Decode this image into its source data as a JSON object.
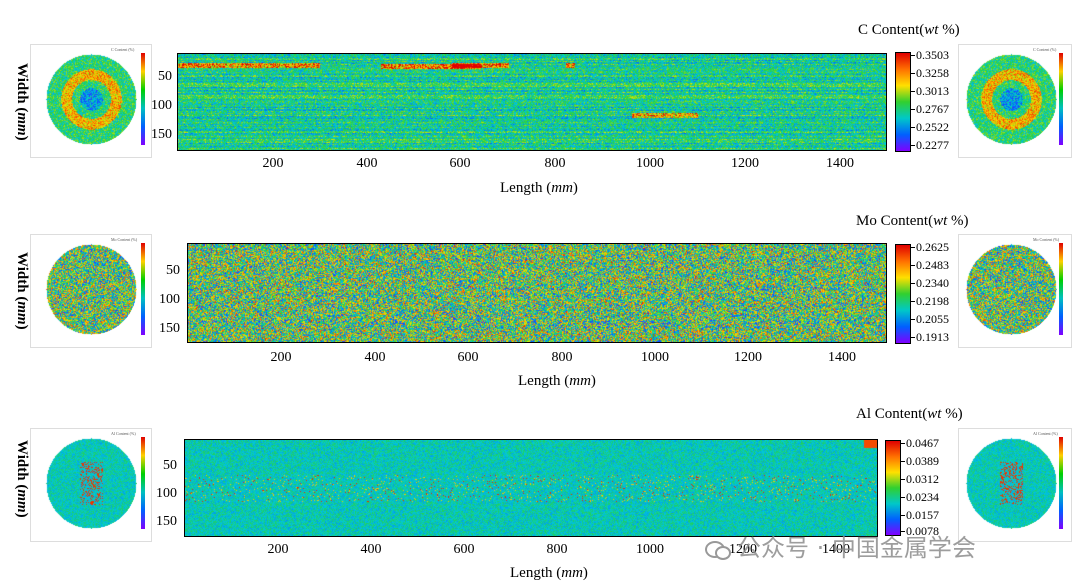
{
  "chart_data": [
    {
      "type": "heatmap",
      "title": "C Content(wt %)",
      "title_main": "C Content(",
      "title_unit": "wt",
      "title_tail": " %)",
      "xlabel_main": "Length (",
      "xlabel_unit": "mm",
      "xlabel_tail": ")",
      "ylabel_main": "Width (",
      "ylabel_unit": "mm",
      "ylabel_tail": ")",
      "xticks": [
        200,
        400,
        600,
        800,
        1000,
        1200,
        1400
      ],
      "yticks": [
        50,
        100,
        150
      ],
      "xlim": [
        0,
        1500
      ],
      "ylim": [
        0,
        180
      ],
      "colorbar_ticks": [
        "0.3503",
        "0.3258",
        "0.3013",
        "0.2767",
        "0.2522",
        "0.2277"
      ],
      "range": [
        0.2277,
        0.3503
      ],
      "pattern": "streaks",
      "red_zones": [
        [
          0,
          300,
          20,
          0.9
        ],
        [
          430,
          640,
          22,
          1.0
        ],
        [
          580,
          700,
          20,
          1.0
        ],
        [
          820,
          840,
          20,
          1.0
        ],
        [
          960,
          1100,
          115,
          0.8
        ]
      ],
      "thumb_title": "C Content (%)"
    },
    {
      "type": "heatmap",
      "title": "Mo Content(wt %)",
      "title_main": "Mo Content(",
      "title_unit": "wt",
      "title_tail": " %)",
      "xlabel_main": "Length (",
      "xlabel_unit": "mm",
      "xlabel_tail": ")",
      "ylabel_main": "Width (",
      "ylabel_unit": "mm",
      "ylabel_tail": ")",
      "xticks": [
        200,
        400,
        600,
        800,
        1000,
        1200,
        1400
      ],
      "yticks": [
        50,
        100,
        150
      ],
      "xlim": [
        0,
        1500
      ],
      "ylim": [
        0,
        180
      ],
      "colorbar_ticks": [
        "0.2625",
        "0.2483",
        "0.2340",
        "0.2198",
        "0.2055",
        "0.1913"
      ],
      "range": [
        0.1913,
        0.2625
      ],
      "pattern": "noise",
      "red_zones": [],
      "thumb_title": "Mo Content (%)"
    },
    {
      "type": "heatmap",
      "title": "Al Content(wt %)",
      "title_main": "Al Content(",
      "title_unit": "wt",
      "title_tail": " %)",
      "xlabel_main": "Length (",
      "xlabel_unit": "mm",
      "xlabel_tail": ")",
      "ylabel_main": "Width (",
      "ylabel_unit": "mm",
      "ylabel_tail": ")",
      "xticks": [
        200,
        400,
        600,
        800,
        1000,
        1200,
        1400
      ],
      "yticks": [
        50,
        100,
        150
      ],
      "xlim": [
        0,
        1500
      ],
      "ylim": [
        0,
        180
      ],
      "colorbar_ticks": [
        "0.0467",
        "0.0389",
        "0.0312",
        "0.0234",
        "0.0157",
        "0.0078"
      ],
      "range": [
        0.0078,
        0.0467
      ],
      "pattern": "spots",
      "red_zones": [],
      "thumb_title": "Al Content (%)"
    }
  ],
  "watermark": "公众号 · 中国金属学会"
}
